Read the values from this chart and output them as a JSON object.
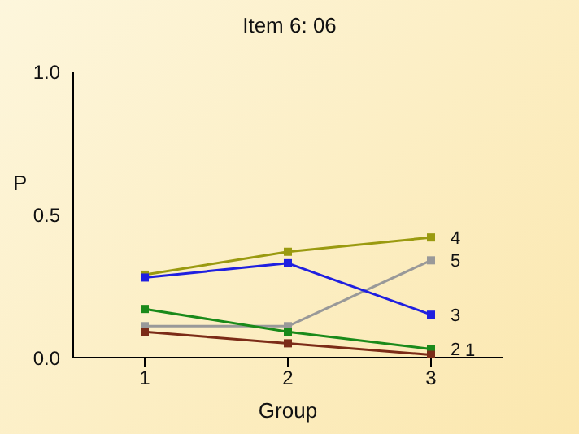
{
  "chart_data": {
    "type": "line",
    "title": "Item 6: 06",
    "xlabel": "Group",
    "ylabel": "P",
    "x": [
      1,
      2,
      3
    ],
    "xlim": [
      0.5,
      3.5
    ],
    "xticks": [
      1,
      2,
      3
    ],
    "ylim": [
      0,
      1
    ],
    "yticks": [
      {
        "value": 0,
        "label": "0.0"
      },
      {
        "value": 0.5,
        "label": "0.5"
      },
      {
        "value": 1,
        "label": "1.0"
      }
    ],
    "grid": false,
    "legend": false,
    "marker": "square",
    "line_style": "solid",
    "series": [
      {
        "name": "1",
        "color": "#7b2b17",
        "values": [
          0.09,
          0.05,
          0.01
        ]
      },
      {
        "name": "2",
        "color": "#1a8a1a",
        "values": [
          0.17,
          0.09,
          0.03
        ]
      },
      {
        "name": "3",
        "color": "#1f1fe0",
        "values": [
          0.28,
          0.33,
          0.15
        ]
      },
      {
        "name": "4",
        "color": "#9a9a10",
        "values": [
          0.29,
          0.37,
          0.42
        ]
      },
      {
        "name": "5",
        "color": "#999999",
        "values": [
          0.11,
          0.11,
          0.34
        ]
      }
    ]
  }
}
